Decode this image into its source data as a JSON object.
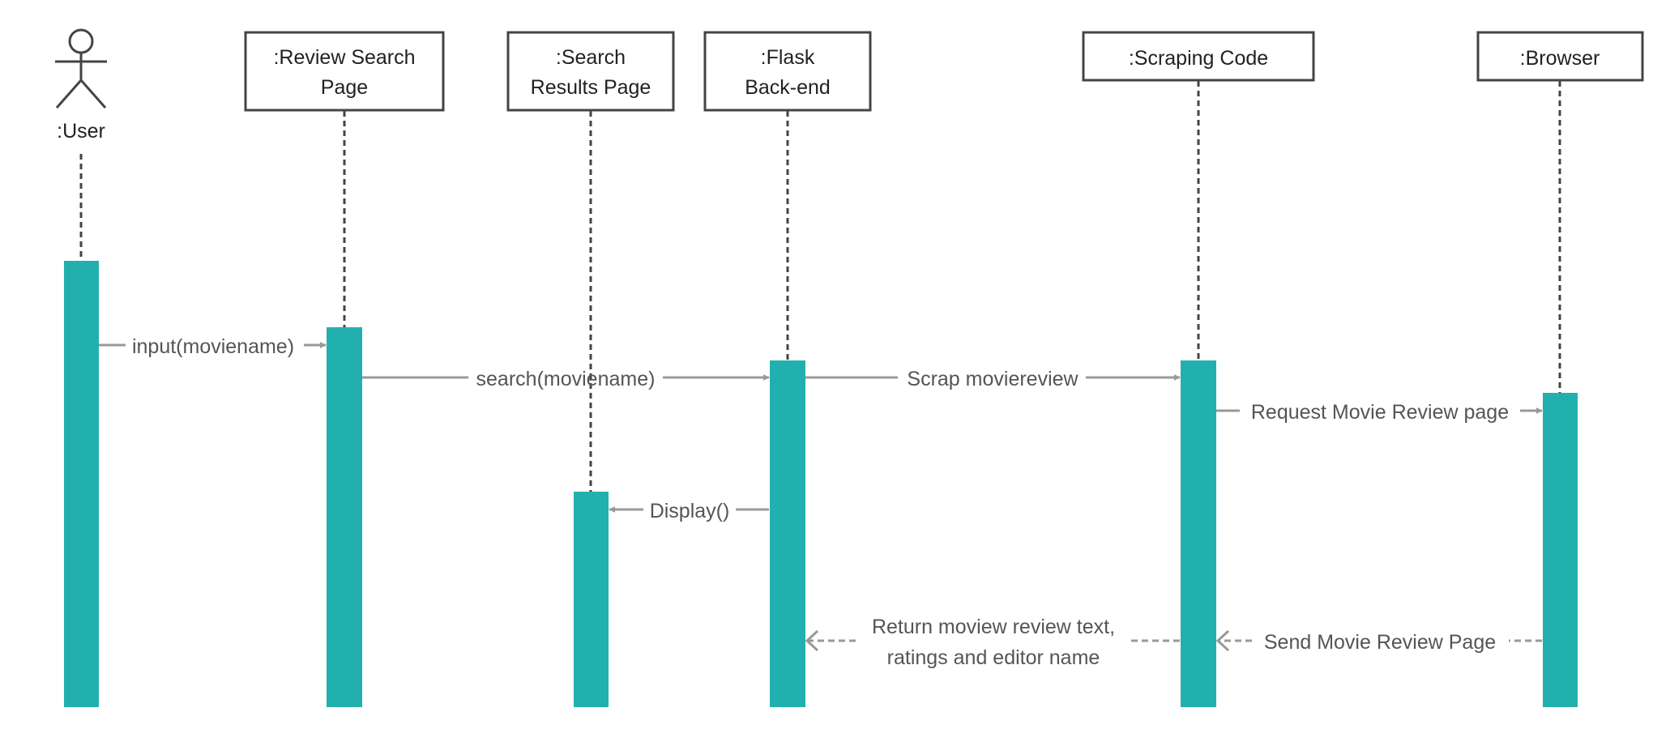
{
  "diagram": {
    "type": "sequence",
    "colors": {
      "activation": "#22b0ae",
      "arrow": "#999999",
      "box_stroke": "#444444",
      "lifeline": "#444444",
      "text": "#222222",
      "message_text": "#555555"
    },
    "actor": {
      "name": ":User"
    },
    "participants": [
      {
        "id": "review-search-page",
        "lines": [
          ":Review Search",
          "Page"
        ]
      },
      {
        "id": "search-results-page",
        "lines": [
          ":Search",
          "Results Page"
        ]
      },
      {
        "id": "flask-back-end",
        "lines": [
          ":Flask",
          "Back-end"
        ]
      },
      {
        "id": "scraping-code",
        "lines": [
          ":Scraping Code"
        ]
      },
      {
        "id": "browser",
        "lines": [
          ":Browser"
        ]
      }
    ],
    "messages": [
      {
        "id": "input",
        "from": "user",
        "to": "review-search-page",
        "kind": "call",
        "lines": [
          "input(moviename)"
        ]
      },
      {
        "id": "search",
        "from": "review-search-page",
        "to": "flask-back-end",
        "kind": "call",
        "lines": [
          "search(moviename)"
        ]
      },
      {
        "id": "scrap",
        "from": "flask-back-end",
        "to": "scraping-code",
        "kind": "call",
        "lines": [
          "Scrap moviereview"
        ]
      },
      {
        "id": "request",
        "from": "scraping-code",
        "to": "browser",
        "kind": "call",
        "lines": [
          "Request Movie Review page"
        ]
      },
      {
        "id": "display",
        "from": "flask-back-end",
        "to": "search-results-page",
        "kind": "call",
        "lines": [
          "Display()"
        ]
      },
      {
        "id": "send",
        "from": "browser",
        "to": "scraping-code",
        "kind": "return",
        "lines": [
          "Send Movie Review Page"
        ]
      },
      {
        "id": "return",
        "from": "scraping-code",
        "to": "flask-back-end",
        "kind": "return",
        "lines": [
          "Return moview review text,",
          "ratings and editor name"
        ]
      }
    ]
  }
}
